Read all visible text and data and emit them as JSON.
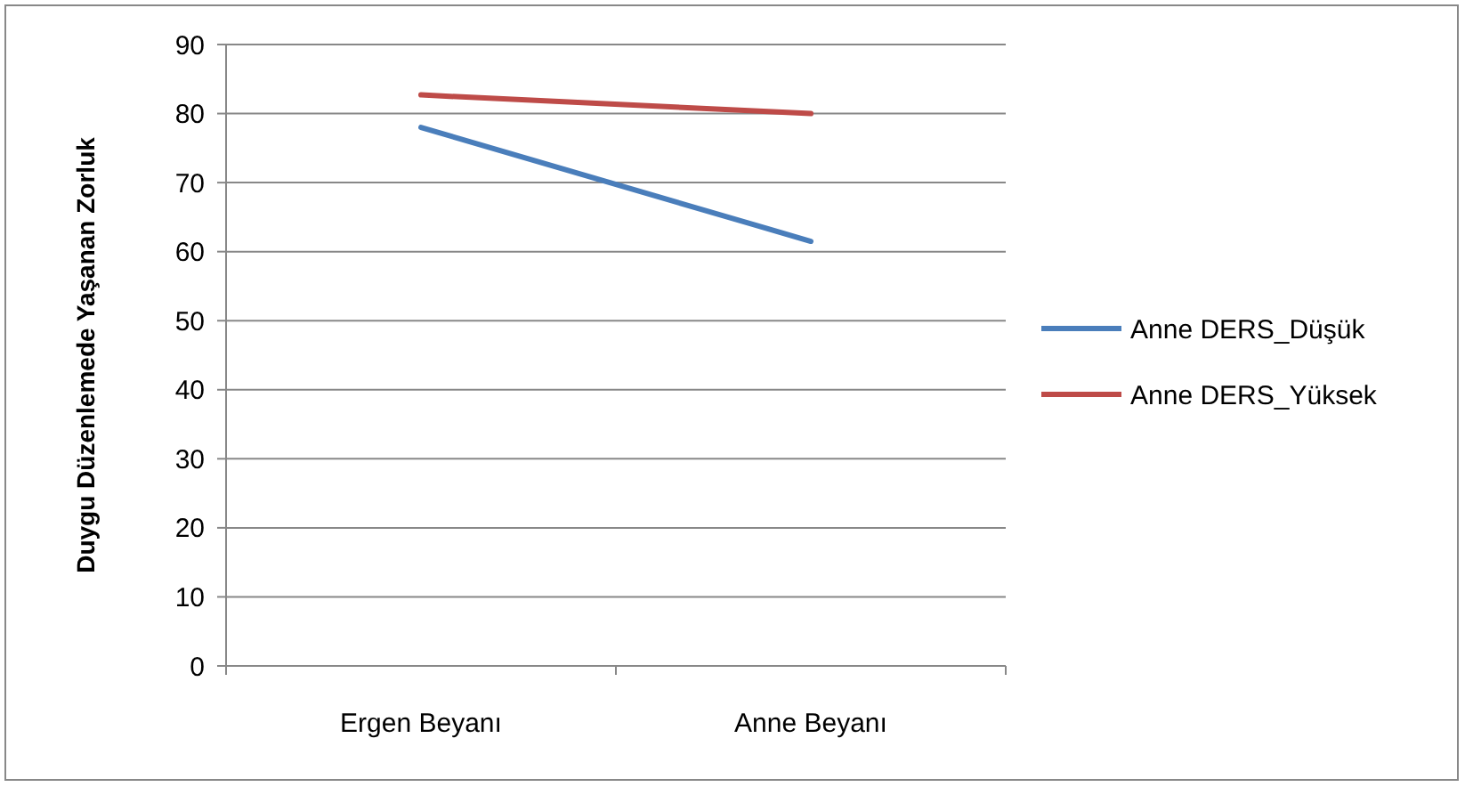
{
  "chart_data": {
    "type": "line",
    "ylabel": "Duygu Düzenlemede Yaşanan Zorluk",
    "categories": [
      "Ergen Beyanı",
      "Anne Beyanı"
    ],
    "series": [
      {
        "name": "Anne DERS_Düşük",
        "color": "#4a7ebb",
        "values": [
          78,
          61.5
        ]
      },
      {
        "name": "Anne DERS_Yüksek",
        "color": "#be4b48",
        "values": [
          82.7,
          80
        ]
      }
    ],
    "ylim": [
      0,
      90
    ],
    "yticks": [
      0,
      10,
      20,
      30,
      40,
      50,
      60,
      70,
      80,
      90
    ],
    "grid": "y",
    "legend": "right",
    "marker": "none",
    "line_style": "solid"
  }
}
